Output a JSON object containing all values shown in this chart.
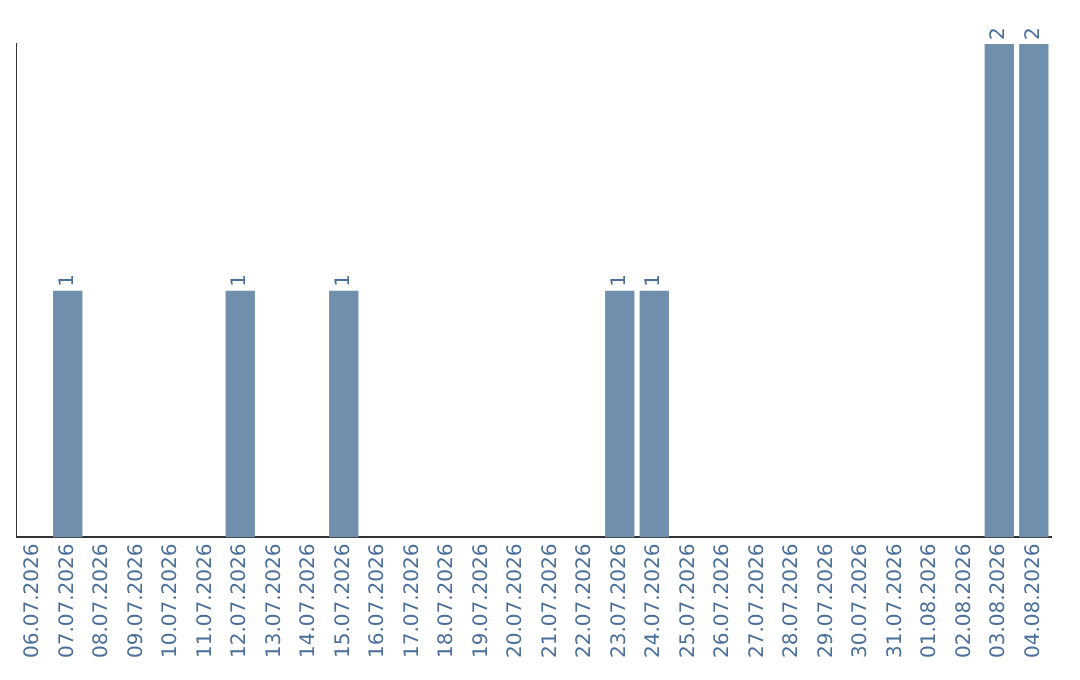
{
  "chart_data": {
    "type": "bar",
    "categories": [
      "06.07.2026",
      "07.07.2026",
      "08.07.2026",
      "09.07.2026",
      "10.07.2026",
      "11.07.2026",
      "12.07.2026",
      "13.07.2026",
      "14.07.2026",
      "15.07.2026",
      "16.07.2026",
      "17.07.2026",
      "18.07.2026",
      "19.07.2026",
      "20.07.2026",
      "21.07.2026",
      "22.07.2026",
      "23.07.2026",
      "24.07.2026",
      "25.07.2026",
      "26.07.2026",
      "27.07.2026",
      "28.07.2026",
      "29.07.2026",
      "30.07.2026",
      "31.07.2026",
      "01.08.2026",
      "02.08.2026",
      "03.08.2026",
      "04.08.2026"
    ],
    "values": [
      0,
      1,
      0,
      0,
      0,
      0,
      1,
      0,
      0,
      1,
      0,
      0,
      0,
      0,
      0,
      0,
      0,
      1,
      1,
      0,
      0,
      0,
      0,
      0,
      0,
      0,
      0,
      0,
      2,
      2
    ],
    "value_labels": [
      null,
      "1",
      null,
      null,
      null,
      null,
      "1",
      null,
      null,
      "1",
      null,
      null,
      null,
      null,
      null,
      null,
      null,
      "1",
      "1",
      null,
      null,
      null,
      null,
      null,
      null,
      null,
      null,
      null,
      "2",
      "2"
    ],
    "color": "#6f8fad",
    "ylim": [
      0,
      2
    ],
    "tick_labels": "x",
    "grid": false,
    "legend": false
  }
}
